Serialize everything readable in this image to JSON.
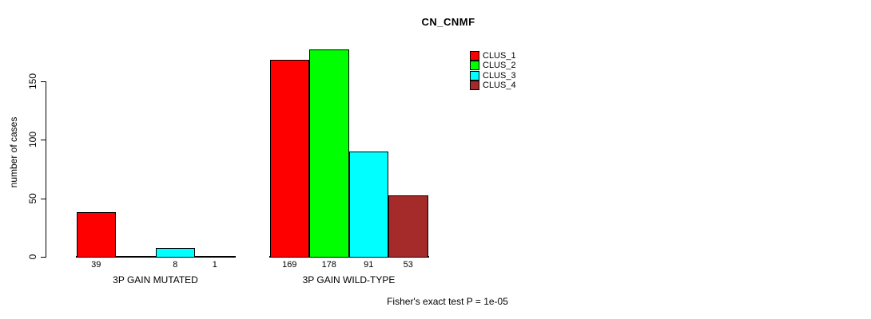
{
  "chart_data": {
    "type": "bar",
    "title": "CN_CNMF",
    "ylabel": "number of cases",
    "xlabel": "",
    "ylim": [
      0,
      180
    ],
    "yticks": [
      0,
      50,
      100,
      150
    ],
    "grid": false,
    "legend_position": "top-right",
    "categories": [
      "3P GAIN MUTATED",
      "3P GAIN WILD-TYPE"
    ],
    "series": [
      {
        "name": "CLUS_1",
        "color": "#ff0000",
        "values": [
          39,
          169
        ]
      },
      {
        "name": "CLUS_2",
        "color": "#00ff00",
        "values": [
          0,
          178
        ]
      },
      {
        "name": "CLUS_3",
        "color": "#00ffff",
        "values": [
          8,
          91
        ]
      },
      {
        "name": "CLUS_4",
        "color": "#a52a2a",
        "values": [
          1,
          53
        ]
      }
    ],
    "bar_value_labels": [
      [
        "39",
        "",
        "8",
        "1"
      ],
      [
        "169",
        "178",
        "91",
        "53"
      ]
    ],
    "footnote": "Fisher's exact test P = 1e-05"
  }
}
